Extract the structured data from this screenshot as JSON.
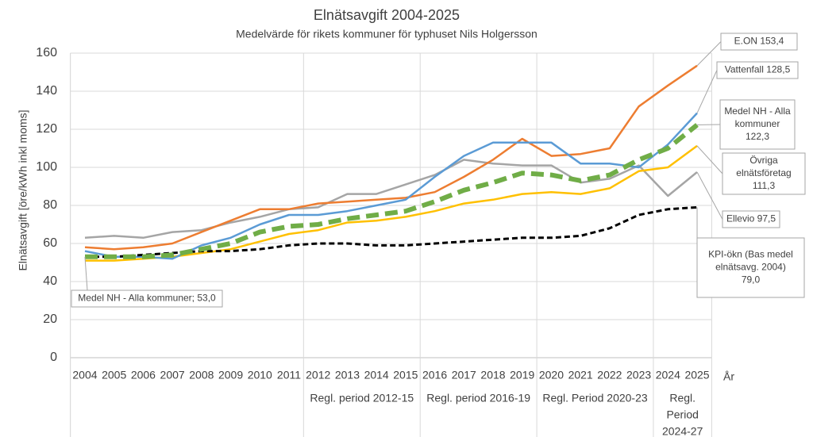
{
  "chart_data": {
    "type": "line",
    "title": "Elnätsavgift 2004-2025",
    "subtitle": "Medelvärde för rikets kommuner för typhuset Nils Holgersson",
    "ylabel": "Elnätsavgift [öre/kWh inkl moms]",
    "xlabel": "År",
    "categories": [
      "2004",
      "2005",
      "2006",
      "2007",
      "2008",
      "2009",
      "2010",
      "2011",
      "2012",
      "2013",
      "2014",
      "2015",
      "2016",
      "2017",
      "2018",
      "2019",
      "2020",
      "2021",
      "2022",
      "2023",
      "2024",
      "2025"
    ],
    "ylim": [
      0,
      160
    ],
    "yticks": [
      0,
      20,
      40,
      60,
      80,
      100,
      120,
      140,
      160
    ],
    "grid": true,
    "series": [
      {
        "name": "E.ON",
        "color": "#ED7D31",
        "width": 2.5,
        "dashed": false,
        "values": [
          58,
          57,
          58,
          60,
          66,
          72,
          78,
          78,
          81,
          82,
          83,
          84,
          87,
          95,
          104,
          115,
          106,
          107,
          110,
          132,
          143,
          153.4
        ]
      },
      {
        "name": "Vattenfall",
        "color": "#5B9BD5",
        "width": 2.5,
        "dashed": false,
        "values": [
          56,
          53,
          53,
          52,
          59,
          63,
          70,
          75,
          75,
          77,
          80,
          83,
          95,
          106,
          113,
          113,
          113,
          102,
          102,
          100,
          112,
          128.5
        ]
      },
      {
        "name": "Ellevio",
        "color": "#A5A5A5",
        "width": 2.5,
        "dashed": false,
        "values": [
          63,
          64,
          63,
          66,
          67,
          71,
          74,
          78,
          79,
          86,
          86,
          91,
          96,
          104,
          102,
          101,
          101,
          92,
          94,
          101,
          85,
          97.5
        ]
      },
      {
        "name": "Övriga elnätsföretag",
        "color": "#FFC000",
        "width": 2.5,
        "dashed": false,
        "values": [
          51,
          51,
          52,
          53,
          55,
          57,
          61,
          65,
          67,
          71,
          72,
          74,
          77,
          81,
          83,
          86,
          87,
          86,
          89,
          98,
          100,
          111.3
        ]
      },
      {
        "name": "Medel NH - Alla kommuner",
        "color": "#70AD47",
        "width": 6,
        "dashed": true,
        "values": [
          53.0,
          53,
          53,
          54,
          57,
          60,
          66,
          69,
          70,
          73,
          75,
          77,
          82,
          88,
          92,
          97,
          96,
          93,
          96,
          104,
          110,
          122.3
        ]
      },
      {
        "name": "KPI-ökn (Bas medel elnätsavg. 2004)",
        "color": "#000000",
        "width": 3,
        "dashed": true,
        "values": [
          53,
          53,
          54,
          55,
          56,
          56,
          57,
          59,
          60,
          60,
          59,
          59,
          60,
          61,
          62,
          63,
          63,
          64,
          68,
          75,
          78,
          79.0
        ]
      }
    ],
    "annotations": [
      {
        "lines": [
          "E.ON 153,4"
        ]
      },
      {
        "lines": [
          "Vattenfall 128,5"
        ]
      },
      {
        "lines": [
          "Medel NH - Alla",
          "kommuner",
          "122,3"
        ]
      },
      {
        "lines": [
          "Övriga",
          "elnätsföretag",
          "111,3"
        ]
      },
      {
        "lines": [
          "Ellevio 97,5"
        ]
      },
      {
        "lines": [
          "KPI-ökn (Bas medel",
          "elnätsavg. 2004)",
          "79,0"
        ]
      },
      {
        "lines": [
          "Medel NH - Alla kommuner; 53,0"
        ]
      }
    ],
    "periods": [
      {
        "lines": [
          "Regl. period 2012-15"
        ]
      },
      {
        "lines": [
          "Regl. period 2016-19"
        ]
      },
      {
        "lines": [
          "Regl. Period 2020-23"
        ]
      },
      {
        "lines": [
          "Regl.",
          "Period",
          "2024-27"
        ]
      }
    ]
  }
}
